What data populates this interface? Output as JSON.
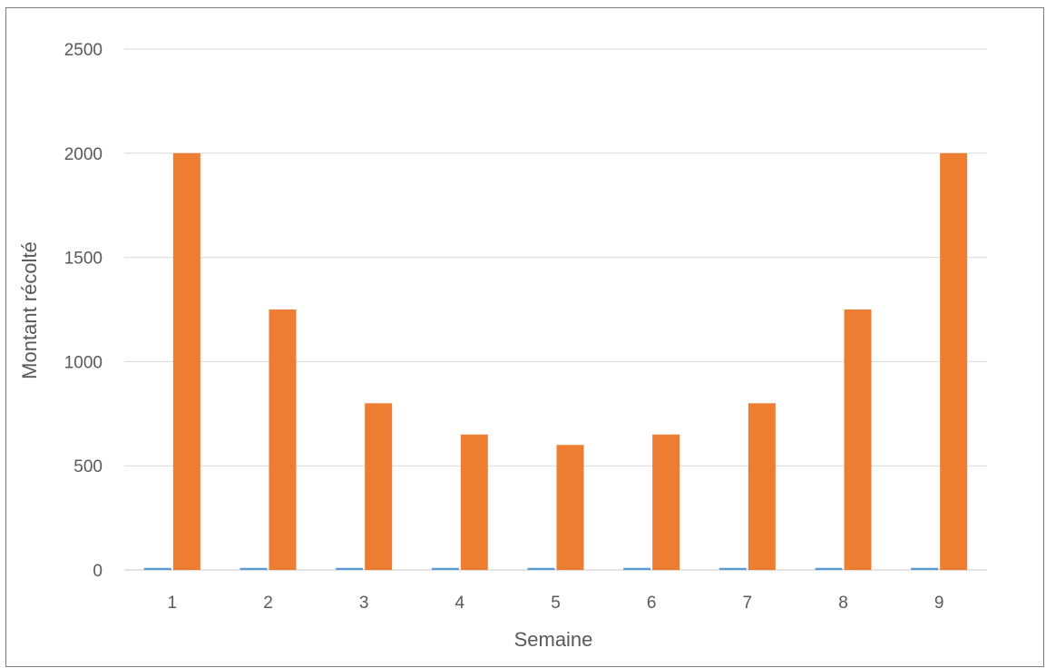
{
  "chart_data": {
    "type": "bar",
    "title": "",
    "xlabel": "Semaine",
    "ylabel": "Montant récolté",
    "categories": [
      "1",
      "2",
      "3",
      "4",
      "5",
      "6",
      "7",
      "8",
      "9"
    ],
    "series": [
      {
        "values": [
          10,
          10,
          10,
          10,
          10,
          10,
          10,
          10,
          10
        ],
        "color": "#5B9BD5"
      },
      {
        "values": [
          2000,
          1250,
          800,
          650,
          600,
          650,
          800,
          1250,
          2000
        ],
        "color": "#ED7D31"
      }
    ],
    "ylim": [
      0,
      2500
    ],
    "yticks": [
      0,
      500,
      1000,
      1500,
      2000,
      2500
    ],
    "grid": true,
    "legend": "none"
  }
}
